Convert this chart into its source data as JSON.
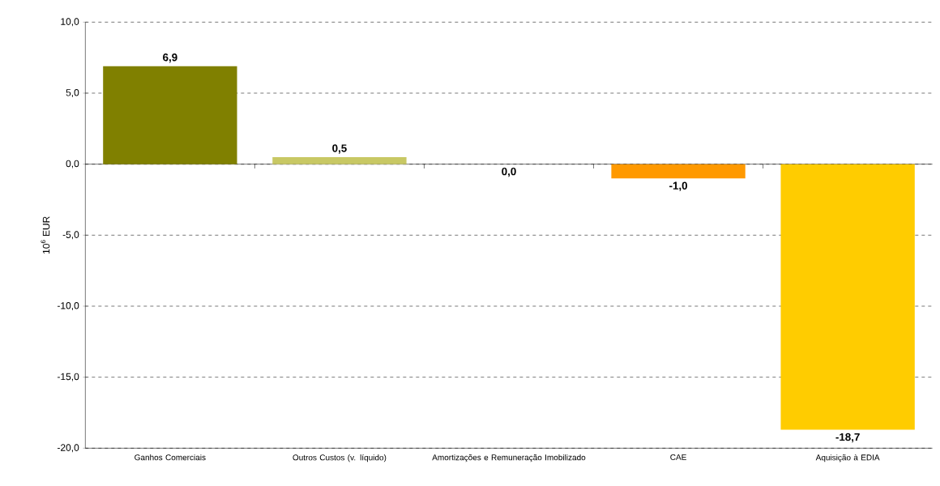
{
  "chart_data": {
    "type": "bar",
    "ylabel": "10$^{6}$ EUR",
    "categories": [
      "Ganhos Comerciais",
      "Outros Custos (v. líquido)",
      "Amortizações e Remuneração Imobilizado",
      "CAE",
      "Aquisição à EDIA"
    ],
    "values": [
      6.9,
      0.5,
      0.0,
      -1.0,
      -18.7
    ],
    "colors": [
      "#808000",
      "#c8c864",
      "#006666",
      "#ff9900",
      "#ffcc00"
    ],
    "value_labels": [
      "6,9",
      "0,5",
      "0,0",
      "-1,0",
      "-18,7"
    ],
    "ylim": [
      -20,
      10
    ],
    "yticks": [
      {
        "value": -20,
        "label": "-20,0"
      },
      {
        "value": -15,
        "label": "-15,0"
      },
      {
        "value": -10,
        "label": "-10,0"
      },
      {
        "value": -5,
        "label": "-5,0"
      },
      {
        "value": 0,
        "label": "0,0"
      },
      {
        "value": 5,
        "label": "5,0"
      },
      {
        "value": 10,
        "label": "10,0"
      }
    ],
    "grid": "y"
  }
}
